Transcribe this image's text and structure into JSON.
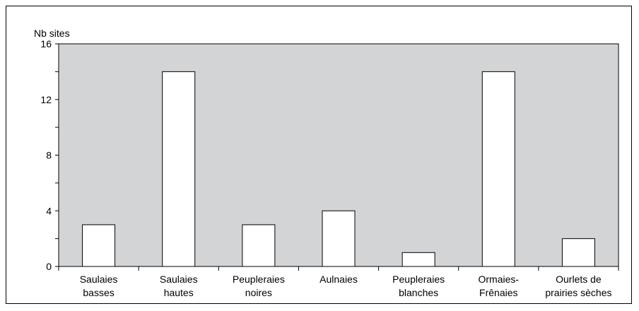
{
  "chart_data": {
    "type": "bar",
    "ylabel": "Nb sites",
    "ylim": [
      0,
      16
    ],
    "yticks": [
      0,
      4,
      8,
      12,
      16
    ],
    "categories": [
      [
        "Saulaies",
        "basses"
      ],
      [
        "Saulaies",
        "hautes"
      ],
      [
        "Peupleraies",
        "noires"
      ],
      [
        "Aulnaies"
      ],
      [
        "Peupleraies",
        "blanches"
      ],
      [
        "Ormaies-",
        "Frênaies"
      ],
      [
        "Ourlets de",
        "prairies sèches"
      ]
    ],
    "values": [
      3,
      14,
      3,
      4,
      1,
      14,
      2
    ],
    "colors": {
      "plot_background": "#d3d4d6",
      "bar_fill": "#ffffff",
      "bar_stroke": "#000000"
    }
  }
}
